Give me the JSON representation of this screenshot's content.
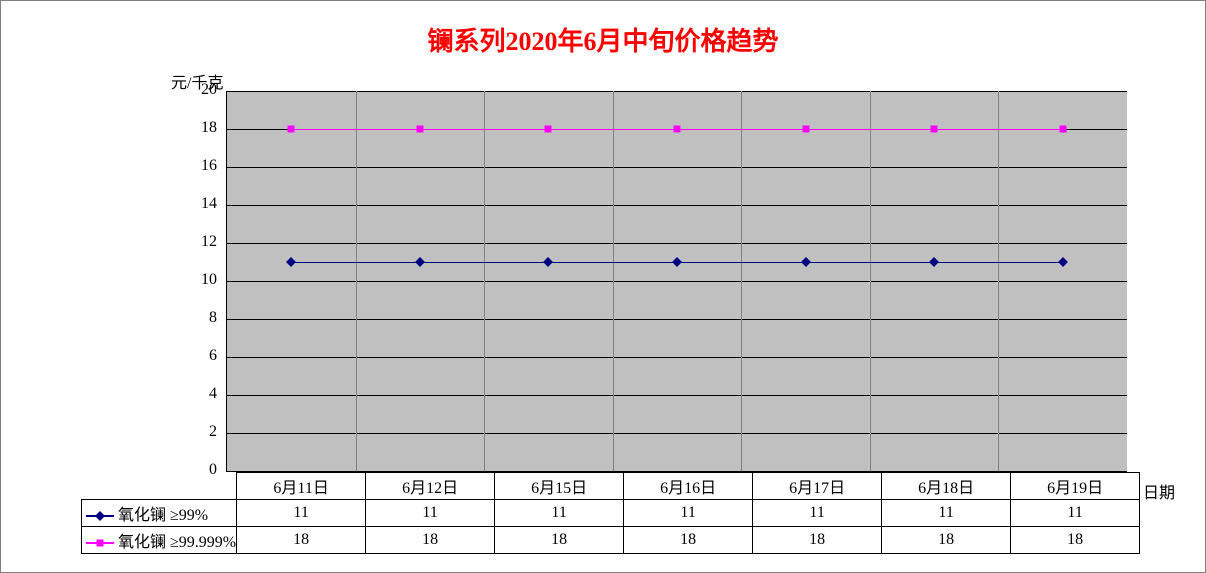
{
  "chart": {
    "type": "line",
    "title": "镧系列2020年6月中旬价格趋势",
    "title_color": "#ff0000",
    "title_fontsize": 26,
    "ylabel": "元/千克",
    "xlabel": "日期",
    "background_color": "#c0c0c0",
    "grid_color": "#000000",
    "ylim": [
      0,
      20
    ],
    "ytick_step": 2,
    "yticks": [
      "0",
      "2",
      "4",
      "6",
      "8",
      "10",
      "12",
      "14",
      "16",
      "18",
      "20"
    ],
    "categories": [
      "6月11日",
      "6月12日",
      "6月15日",
      "6月16日",
      "6月17日",
      "6月18日",
      "6月19日"
    ],
    "series": [
      {
        "name": "氧化镧 ≥99%",
        "values": [
          11,
          11,
          11,
          11,
          11,
          11,
          11
        ],
        "line_color": "#000080",
        "marker": "diamond",
        "marker_color": "#000080",
        "line_width": 1
      },
      {
        "name": "氧化镧 ≥99.999%",
        "values": [
          18,
          18,
          18,
          18,
          18,
          18,
          18
        ],
        "line_color": "#ff00ff",
        "marker": "square",
        "marker_color": "#ff00ff",
        "line_width": 1
      }
    ]
  }
}
